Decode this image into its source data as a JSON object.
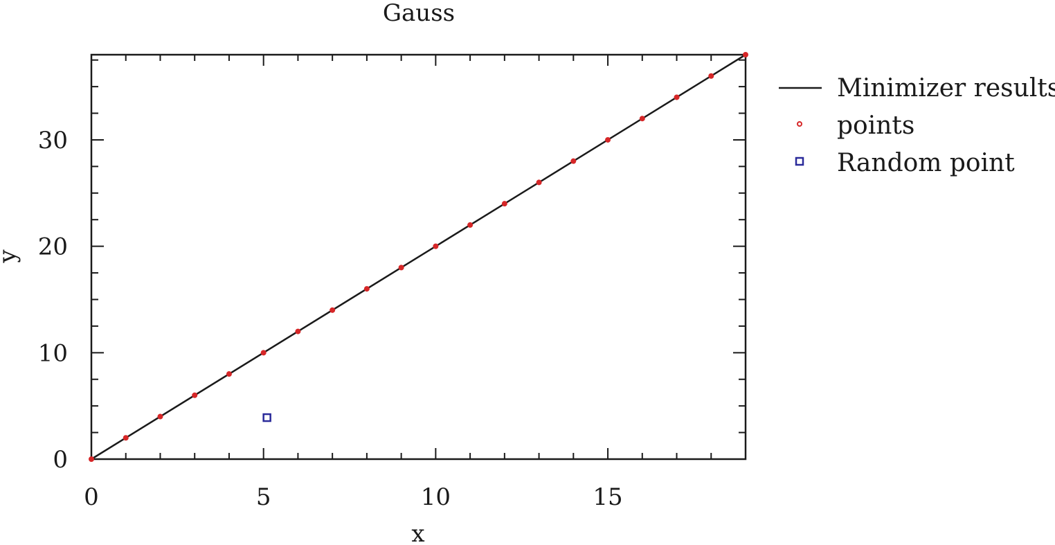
{
  "chart_data": {
    "type": "scatter",
    "title": "Gauss",
    "xlabel": "x",
    "ylabel": "y",
    "xlim": [
      0,
      19
    ],
    "ylim": [
      0,
      38
    ],
    "grid": false,
    "legend_position": "outside-right",
    "x_ticks": [
      "0",
      "5",
      "10",
      "15"
    ],
    "y_ticks": [
      "0",
      "10",
      "20",
      "30"
    ],
    "series": [
      {
        "name": "Minimizer results",
        "kind": "line",
        "color": "#1a1a1a",
        "x": [
          0,
          19
        ],
        "y": [
          0,
          38
        ]
      },
      {
        "name": "points",
        "kind": "scatter",
        "marker": "circle",
        "color": "#d62728",
        "x": [
          0,
          1,
          2,
          3,
          4,
          5,
          6,
          7,
          8,
          9,
          10,
          11,
          12,
          13,
          14,
          15,
          16,
          17,
          18,
          19
        ],
        "y": [
          0,
          2,
          4,
          6,
          8,
          10,
          12,
          14,
          16,
          18,
          20,
          22,
          24,
          26,
          28,
          30,
          32,
          34,
          36,
          38
        ]
      },
      {
        "name": "Random point",
        "kind": "scatter",
        "marker": "square",
        "color": "#2a2a9a",
        "x": [
          5.1
        ],
        "y": [
          3.9
        ]
      }
    ]
  }
}
